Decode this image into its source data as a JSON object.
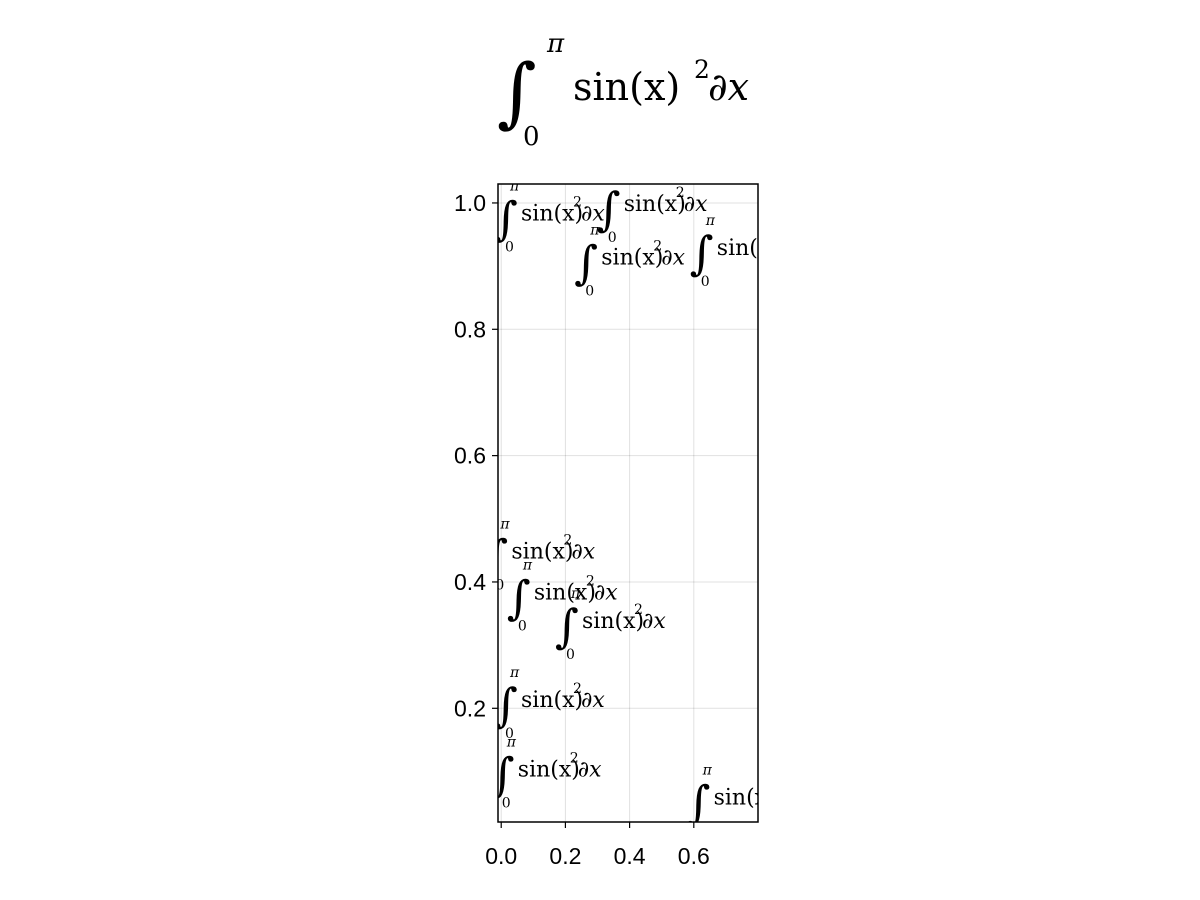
{
  "chart_data": {
    "type": "scatter",
    "title": {
      "integral_sign": "∫",
      "upper_limit": "π",
      "lower_limit": "0",
      "body": "sin(x)",
      "exponent": "2",
      "differential": "∂x"
    },
    "xlabel": "",
    "ylabel": "",
    "xlim": [
      -0.01,
      0.8
    ],
    "ylim": [
      0.02,
      1.03
    ],
    "xticks": [
      0.0,
      0.2,
      0.4,
      0.6
    ],
    "xtick_labels": [
      "0.0",
      "0.2",
      "0.4",
      "0.6"
    ],
    "yticks": [
      0.2,
      0.4,
      0.6,
      0.8,
      1.0
    ],
    "ytick_labels": [
      "0.2",
      "0.4",
      "0.6",
      "0.8",
      "1.0"
    ],
    "grid": true,
    "legend": "none",
    "marker_text": {
      "integral_sign": "∫",
      "upper_limit": "π",
      "lower_limit": "0",
      "body": "sin(x)",
      "exponent": "2",
      "differential": "∂x"
    },
    "points": [
      {
        "x": -0.01,
        "y": 0.985
      },
      {
        "x": 0.24,
        "y": 0.915
      },
      {
        "x": 0.31,
        "y": 1.0
      },
      {
        "x": 0.6,
        "y": 0.93
      },
      {
        "x": -0.04,
        "y": 0.45
      },
      {
        "x": 0.03,
        "y": 0.385
      },
      {
        "x": 0.18,
        "y": 0.34
      },
      {
        "x": -0.01,
        "y": 0.215
      },
      {
        "x": -0.02,
        "y": 0.105
      },
      {
        "x": 0.59,
        "y": 0.06
      }
    ]
  }
}
